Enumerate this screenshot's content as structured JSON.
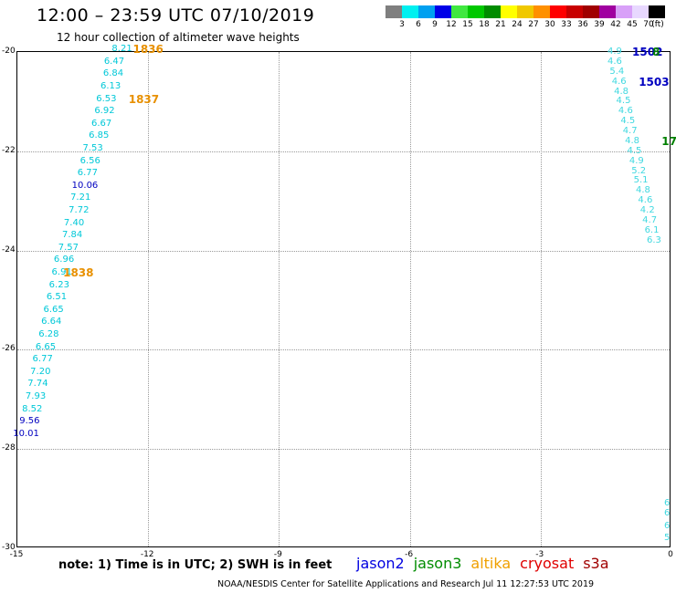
{
  "header": {
    "title": "12:00 – 23:59 UTC 07/10/2019",
    "subtitle": "12 hour collection of altimeter wave heights"
  },
  "legend": {
    "unit": "(ft)",
    "swatches": [
      {
        "color": "#7f7f7f",
        "label": "3"
      },
      {
        "color": "#00f0f0",
        "label": "6"
      },
      {
        "color": "#00a0f0",
        "label": "9"
      },
      {
        "color": "#0000e8",
        "label": "12"
      },
      {
        "color": "#40e840",
        "label": "15"
      },
      {
        "color": "#00c800",
        "label": "18"
      },
      {
        "color": "#008c00",
        "label": "21"
      },
      {
        "color": "#ffff00",
        "label": "24"
      },
      {
        "color": "#f0c800",
        "label": "27"
      },
      {
        "color": "#ff9000",
        "label": "30"
      },
      {
        "color": "#ff0000",
        "label": "33"
      },
      {
        "color": "#c80000",
        "label": "36"
      },
      {
        "color": "#a00000",
        "label": "39"
      },
      {
        "color": "#a000a0",
        "label": "42"
      },
      {
        "color": "#d8a0f8",
        "label": "45"
      },
      {
        "color": "#e8d8ff",
        "label": "70"
      },
      {
        "color": "#000000",
        "label": ""
      }
    ]
  },
  "map": {
    "lon_range": [
      -15,
      0
    ],
    "lat_range": [
      -30,
      -20
    ],
    "x_ticks": [
      "-15",
      "-12",
      "-9",
      "-6",
      "-3",
      "0"
    ],
    "y_ticks": [
      "-20",
      "-22",
      "-24",
      "-26",
      "-28",
      "-30"
    ],
    "colors": {
      "cyan": "#00c8d8",
      "light_cyan": "#40d8e0",
      "blue": "#0000c0",
      "orange": "#e89000",
      "green": "#008000"
    },
    "points": [
      {
        "lon": -12.6,
        "lat": -19.95,
        "v": "8.21",
        "c": "cyan"
      },
      {
        "lon": -12.78,
        "lat": -20.2,
        "v": "6.47",
        "c": "cyan"
      },
      {
        "lon": -12.8,
        "lat": -20.45,
        "v": "6.84",
        "c": "cyan"
      },
      {
        "lon": -12.86,
        "lat": -20.7,
        "v": "6.13",
        "c": "cyan"
      },
      {
        "lon": -12.96,
        "lat": -20.95,
        "v": "6.53",
        "c": "cyan"
      },
      {
        "lon": -13.0,
        "lat": -21.2,
        "v": "6.92",
        "c": "cyan"
      },
      {
        "lon": -13.07,
        "lat": -21.45,
        "v": "6.67",
        "c": "cyan"
      },
      {
        "lon": -13.13,
        "lat": -21.7,
        "v": "6.85",
        "c": "cyan"
      },
      {
        "lon": -13.27,
        "lat": -21.95,
        "v": "7.53",
        "c": "cyan"
      },
      {
        "lon": -13.33,
        "lat": -22.2,
        "v": "6.56",
        "c": "cyan"
      },
      {
        "lon": -13.39,
        "lat": -22.45,
        "v": "6.77",
        "c": "cyan"
      },
      {
        "lon": -13.45,
        "lat": -22.7,
        "v": "10.06",
        "c": "blue"
      },
      {
        "lon": -13.55,
        "lat": -22.95,
        "v": "7.21",
        "c": "cyan"
      },
      {
        "lon": -13.59,
        "lat": -23.2,
        "v": "7.72",
        "c": "cyan"
      },
      {
        "lon": -13.7,
        "lat": -23.45,
        "v": "7.40",
        "c": "cyan"
      },
      {
        "lon": -13.74,
        "lat": -23.7,
        "v": "7.84",
        "c": "cyan"
      },
      {
        "lon": -13.83,
        "lat": -23.95,
        "v": "7.57",
        "c": "cyan"
      },
      {
        "lon": -13.93,
        "lat": -24.2,
        "v": "6.96",
        "c": "cyan"
      },
      {
        "lon": -13.98,
        "lat": -24.45,
        "v": "6.91",
        "c": "cyan"
      },
      {
        "lon": -14.04,
        "lat": -24.7,
        "v": "6.23",
        "c": "cyan"
      },
      {
        "lon": -14.1,
        "lat": -24.95,
        "v": "6.51",
        "c": "cyan"
      },
      {
        "lon": -14.17,
        "lat": -25.2,
        "v": "6.65",
        "c": "cyan"
      },
      {
        "lon": -14.22,
        "lat": -25.45,
        "v": "6.64",
        "c": "cyan"
      },
      {
        "lon": -14.28,
        "lat": -25.7,
        "v": "6.28",
        "c": "cyan"
      },
      {
        "lon": -14.35,
        "lat": -25.95,
        "v": "6.65",
        "c": "cyan"
      },
      {
        "lon": -14.42,
        "lat": -26.2,
        "v": "6.77",
        "c": "cyan"
      },
      {
        "lon": -14.47,
        "lat": -26.45,
        "v": "7.20",
        "c": "cyan"
      },
      {
        "lon": -14.53,
        "lat": -26.7,
        "v": "7.74",
        "c": "cyan"
      },
      {
        "lon": -14.58,
        "lat": -26.95,
        "v": "7.93",
        "c": "cyan"
      },
      {
        "lon": -14.66,
        "lat": -27.2,
        "v": "8.52",
        "c": "cyan"
      },
      {
        "lon": -14.72,
        "lat": -27.45,
        "v": "9.56",
        "c": "blue"
      },
      {
        "lon": -14.8,
        "lat": -27.7,
        "v": "10.01",
        "c": "blue"
      },
      {
        "lon": -1.3,
        "lat": -20.0,
        "v": "4.9",
        "c": "light_cyan"
      },
      {
        "lon": -1.3,
        "lat": -20.2,
        "v": "4.6",
        "c": "light_cyan"
      },
      {
        "lon": -1.25,
        "lat": -20.4,
        "v": "5.4",
        "c": "light_cyan"
      },
      {
        "lon": -1.2,
        "lat": -20.6,
        "v": "4.6",
        "c": "light_cyan"
      },
      {
        "lon": -1.15,
        "lat": -20.8,
        "v": "4.8",
        "c": "light_cyan"
      },
      {
        "lon": -1.1,
        "lat": -21.0,
        "v": "4.5",
        "c": "light_cyan"
      },
      {
        "lon": -1.05,
        "lat": -21.2,
        "v": "4.6",
        "c": "light_cyan"
      },
      {
        "lon": -1.0,
        "lat": -21.4,
        "v": "4.5",
        "c": "light_cyan"
      },
      {
        "lon": -0.95,
        "lat": -21.6,
        "v": "4.7",
        "c": "light_cyan"
      },
      {
        "lon": -0.9,
        "lat": -21.8,
        "v": "4.8",
        "c": "light_cyan"
      },
      {
        "lon": -0.85,
        "lat": -22.0,
        "v": "4.5",
        "c": "light_cyan"
      },
      {
        "lon": -0.8,
        "lat": -22.2,
        "v": "4.9",
        "c": "light_cyan"
      },
      {
        "lon": -0.75,
        "lat": -22.4,
        "v": "5.2",
        "c": "light_cyan"
      },
      {
        "lon": -0.7,
        "lat": -22.6,
        "v": "5.1",
        "c": "light_cyan"
      },
      {
        "lon": -0.65,
        "lat": -22.8,
        "v": "4.8",
        "c": "light_cyan"
      },
      {
        "lon": -0.6,
        "lat": -23.0,
        "v": "4.6",
        "c": "light_cyan"
      },
      {
        "lon": -0.55,
        "lat": -23.2,
        "v": "4.2",
        "c": "light_cyan"
      },
      {
        "lon": -0.5,
        "lat": -23.4,
        "v": "4.7",
        "c": "light_cyan"
      },
      {
        "lon": -0.45,
        "lat": -23.6,
        "v": "6.1",
        "c": "light_cyan"
      },
      {
        "lon": -0.4,
        "lat": -23.8,
        "v": "6.3",
        "c": "light_cyan"
      },
      {
        "lon": -0.1,
        "lat": -29.1,
        "v": "6",
        "c": "light_cyan"
      },
      {
        "lon": -0.1,
        "lat": -29.3,
        "v": "6",
        "c": "light_cyan"
      },
      {
        "lon": -0.1,
        "lat": -29.55,
        "v": "6",
        "c": "light_cyan"
      },
      {
        "lon": -0.1,
        "lat": -29.8,
        "v": "5",
        "c": "light_cyan"
      }
    ],
    "passes": [
      {
        "lon": -12.0,
        "lat": -19.95,
        "label": "1836",
        "c": "orange"
      },
      {
        "lon": -12.1,
        "lat": -20.95,
        "label": "1837",
        "c": "orange"
      },
      {
        "lon": -13.6,
        "lat": -24.45,
        "label": "1838",
        "c": "orange"
      },
      {
        "lon": -0.55,
        "lat": -20.0,
        "label": "1502",
        "c": "blue"
      },
      {
        "lon": -0.35,
        "lat": -20.0,
        "label": "8",
        "c": "green"
      },
      {
        "lon": -0.4,
        "lat": -20.6,
        "label": "1503",
        "c": "blue"
      },
      {
        "lon": -0.05,
        "lat": -21.8,
        "label": "17",
        "c": "green"
      }
    ]
  },
  "footer": {
    "note": "note:  1) Time is in UTC;  2) SWH is in feet",
    "satellites": [
      {
        "name": "jason2",
        "color": "#0000e0"
      },
      {
        "name": "jason3",
        "color": "#008c00"
      },
      {
        "name": "altika",
        "color": "#f0a000"
      },
      {
        "name": "cryosat",
        "color": "#e00000"
      },
      {
        "name": "s3a",
        "color": "#a00000"
      }
    ],
    "credit": "NOAA/NESDIS Center for Satellite Applications and Research     Jul 11 12:27:53 UTC 2019"
  }
}
